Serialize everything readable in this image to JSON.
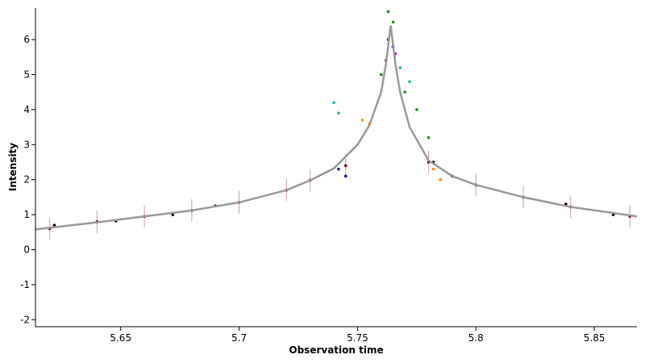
{
  "chart_data": {
    "type": "scatter",
    "xlabel": "Observation time",
    "ylabel": "Intensity",
    "xlim": [
      5.614,
      5.868
    ],
    "ylim": [
      -2.2,
      6.9
    ],
    "xticks": [
      5.65,
      5.7,
      5.75,
      5.8,
      5.85
    ],
    "xtick_labels": [
      "5.65",
      "5.7",
      "5.75",
      "5.8",
      "5.85"
    ],
    "yticks": [
      -2,
      -1,
      0,
      1,
      2,
      3,
      4,
      5,
      6
    ],
    "ytick_labels": [
      "-2",
      "-1",
      "0",
      "1",
      "2",
      "3",
      "4",
      "5",
      "6"
    ],
    "grid": false,
    "model": {
      "peak_time": 5.764,
      "peak_value": 6.4,
      "color": "#999999",
      "x": [
        5.614,
        5.64,
        5.66,
        5.68,
        5.7,
        5.72,
        5.73,
        5.74,
        5.75,
        5.755,
        5.76,
        5.762,
        5.764,
        5.766,
        5.768,
        5.772,
        5.78,
        5.79,
        5.8,
        5.82,
        5.84,
        5.868
      ],
      "y": [
        0.58,
        0.78,
        0.95,
        1.12,
        1.35,
        1.7,
        1.98,
        2.32,
        3.0,
        3.55,
        4.5,
        5.3,
        6.4,
        5.3,
        4.5,
        3.5,
        2.55,
        2.1,
        1.85,
        1.5,
        1.22,
        0.95
      ]
    },
    "series": [
      {
        "color": "#8b0000",
        "errorbar_color": "#c9a3a3",
        "x": [
          5.62,
          5.64,
          5.66,
          5.68,
          5.7,
          5.72,
          5.73,
          5.745,
          5.78,
          5.8,
          5.82,
          5.84,
          5.865
        ],
        "y": [
          0.6,
          0.8,
          0.95,
          1.12,
          1.35,
          1.7,
          1.98,
          2.4,
          2.5,
          1.85,
          1.5,
          1.22,
          0.95
        ]
      },
      {
        "color": "#000000",
        "x": [
          5.622,
          5.648,
          5.672,
          5.69,
          5.782,
          5.79,
          5.838,
          5.858
        ],
        "y": [
          0.7,
          0.82,
          1.0,
          1.25,
          2.5,
          2.1,
          1.3,
          1.0
        ]
      },
      {
        "color": "#20b2aa",
        "x": [
          5.74,
          5.742,
          5.768,
          5.772
        ],
        "y": [
          4.2,
          3.9,
          5.2,
          4.8
        ]
      },
      {
        "color": "#ff8c00",
        "x": [
          5.752,
          5.755,
          5.782,
          5.785
        ],
        "y": [
          3.7,
          3.6,
          2.3,
          2.0
        ]
      },
      {
        "color": "#0000cd",
        "x": [
          5.742,
          5.745,
          5.763,
          5.765
        ],
        "y": [
          2.3,
          2.1,
          6.0,
          5.8
        ]
      },
      {
        "color": "#228b22",
        "x": [
          5.76,
          5.763,
          5.765,
          5.77,
          5.775,
          5.78
        ],
        "y": [
          5.0,
          6.8,
          6.5,
          4.5,
          4.0,
          3.2
        ]
      },
      {
        "color": "#cc00cc",
        "x": [
          5.762,
          5.766
        ],
        "y": [
          5.4,
          5.6
        ]
      }
    ]
  }
}
